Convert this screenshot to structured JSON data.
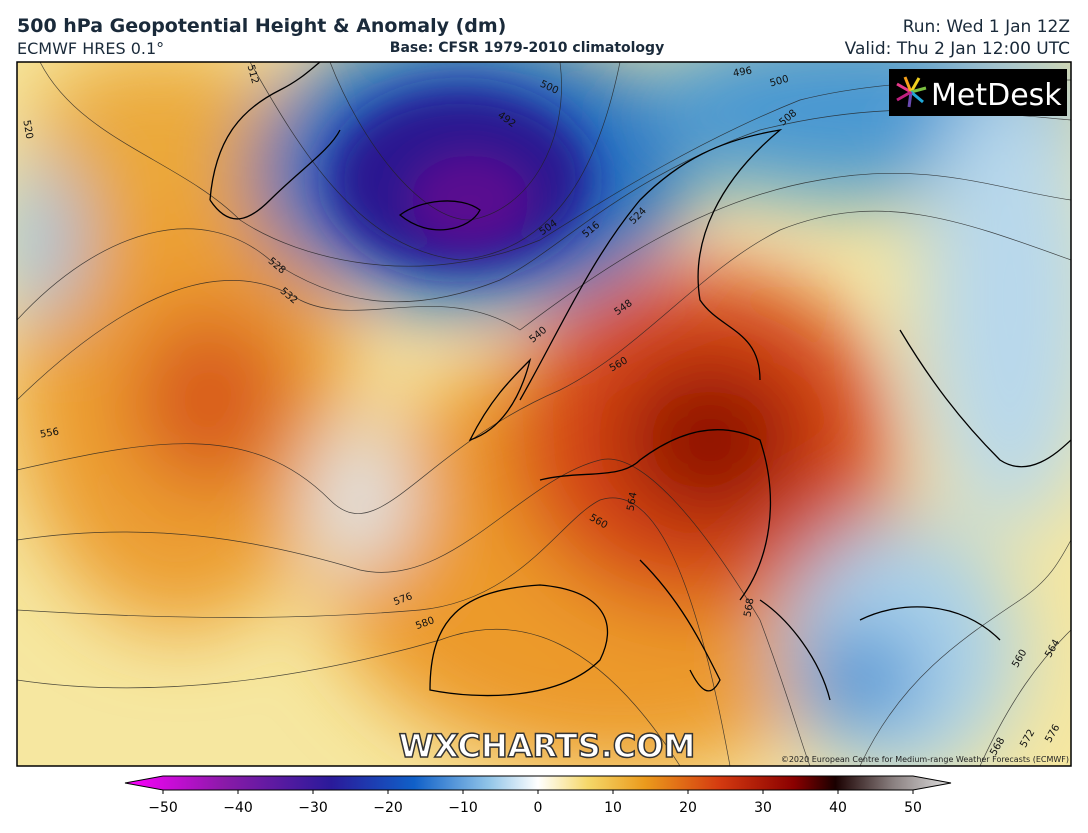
{
  "header": {
    "title": "500 hPa Geopotential Height & Anomaly (dm)",
    "model": "ECMWF HRES 0.1°",
    "base": "Base: CFSR 1979-2010 climatology",
    "run": "Run: Wed 1 Jan 12Z",
    "valid": "Valid: Thu 2 Jan 12:00 UTC"
  },
  "map": {
    "watermark": "WXCHARTS.COM",
    "logo": "MetDesk",
    "copyright": "©2020 European Centre for Medium-range Weather Forecasts (ECMWF)",
    "contour_labels": [
      496,
      500,
      500,
      492,
      508,
      504,
      516,
      524,
      528,
      532,
      540,
      548,
      556,
      560,
      560,
      564,
      576,
      580,
      568,
      512,
      520,
      568,
      572,
      576,
      560,
      564
    ]
  },
  "colorbar": {
    "ticks": [
      {
        "value": -50,
        "label": "−50"
      },
      {
        "value": -40,
        "label": "−40"
      },
      {
        "value": -30,
        "label": "−30"
      },
      {
        "value": -20,
        "label": "−20"
      },
      {
        "value": -10,
        "label": "−10"
      },
      0,
      10,
      20,
      30,
      40,
      50
    ]
  }
}
